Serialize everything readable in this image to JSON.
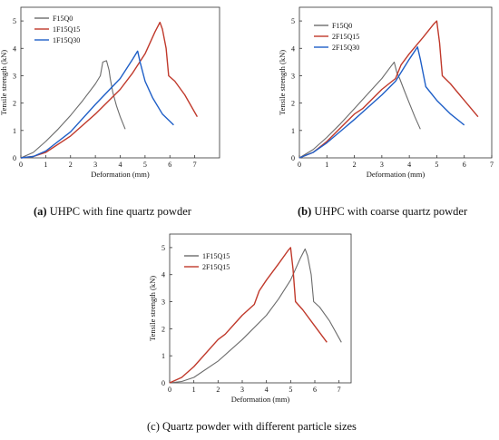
{
  "colors": {
    "gray": "#6b6b6b",
    "red": "#c0392b",
    "blue": "#1f5fc7",
    "axis": "#333333"
  },
  "panels": [
    {
      "caption_label": "(a)",
      "caption_text": "UHPC with fine quartz powder"
    },
    {
      "caption_label": "(b)",
      "caption_text": "UHPC with coarse quartz powder"
    },
    {
      "caption_label": "",
      "caption_text": "(c) Quartz powder with different particle sizes"
    }
  ],
  "chart_data": [
    {
      "type": "line",
      "title": "",
      "xlabel": "Deformation (mm)",
      "ylabel": "Tensile strength (kN)",
      "xlim": [
        0,
        8
      ],
      "ylim": [
        0,
        5.5
      ],
      "xticks": [
        "0",
        "1",
        "2",
        "3",
        "4",
        "5",
        "6",
        "7"
      ],
      "yticks": [
        "0",
        "1",
        "2",
        "3",
        "4",
        "5"
      ],
      "legend_position": "top-left",
      "series": [
        {
          "name": "F15Q0",
          "color": "gray",
          "x": [
            0,
            0.5,
            1.0,
            1.5,
            2.0,
            2.5,
            3.0,
            3.2,
            3.3,
            3.45,
            3.55,
            3.6,
            3.7,
            3.85,
            4.0,
            4.2
          ],
          "y": [
            0,
            0.2,
            0.6,
            1.05,
            1.55,
            2.1,
            2.7,
            3.0,
            3.5,
            3.55,
            3.2,
            2.9,
            2.4,
            1.9,
            1.5,
            1.05
          ]
        },
        {
          "name": "1F15Q15",
          "color": "red",
          "x": [
            0,
            0.5,
            1.0,
            2.0,
            3.0,
            4.0,
            4.5,
            5.0,
            5.4,
            5.6,
            5.7,
            5.85,
            5.95,
            6.2,
            6.6,
            7.1
          ],
          "y": [
            0,
            0.05,
            0.2,
            0.8,
            1.6,
            2.5,
            3.1,
            3.8,
            4.6,
            4.95,
            4.7,
            4.0,
            3.0,
            2.8,
            2.3,
            1.5
          ]
        },
        {
          "name": "1F15Q30",
          "color": "blue",
          "x": [
            0,
            0.5,
            1.0,
            2.0,
            3.0,
            4.0,
            4.5,
            4.7,
            4.8,
            5.0,
            5.3,
            5.7,
            6.15
          ],
          "y": [
            0,
            0.05,
            0.25,
            0.95,
            1.95,
            2.9,
            3.6,
            3.9,
            3.5,
            2.8,
            2.2,
            1.6,
            1.2
          ]
        }
      ]
    },
    {
      "type": "line",
      "title": "",
      "xlabel": "Deformation (mm)",
      "ylabel": "Tensile strength (kN)",
      "xlim": [
        0,
        7
      ],
      "ylim": [
        0,
        5.5
      ],
      "xticks": [
        "0",
        "1",
        "2",
        "3",
        "4",
        "5",
        "6",
        "7"
      ],
      "yticks": [
        "0",
        "1",
        "2",
        "3",
        "4",
        "5"
      ],
      "legend_position": "top-left",
      "series": [
        {
          "name": "F15Q0",
          "color": "gray",
          "x": [
            0,
            0.5,
            1.0,
            1.5,
            2.0,
            2.5,
            3.0,
            3.3,
            3.45,
            3.55,
            3.65,
            3.8,
            4.0,
            4.2,
            4.4
          ],
          "y": [
            0,
            0.3,
            0.75,
            1.25,
            1.8,
            2.35,
            2.9,
            3.3,
            3.5,
            3.1,
            2.9,
            2.5,
            2.0,
            1.5,
            1.05
          ]
        },
        {
          "name": "2F15Q15",
          "color": "red",
          "x": [
            0,
            0.5,
            1.0,
            2.0,
            2.3,
            3.0,
            3.5,
            3.7,
            4.0,
            4.5,
            4.9,
            5.0,
            5.1,
            5.2,
            5.5,
            6.0,
            6.5
          ],
          "y": [
            0,
            0.2,
            0.6,
            1.6,
            1.8,
            2.5,
            2.9,
            3.4,
            3.8,
            4.4,
            4.9,
            5.0,
            4.2,
            3.0,
            2.7,
            2.1,
            1.5
          ]
        },
        {
          "name": "2F15Q30",
          "color": "blue",
          "x": [
            0,
            0.5,
            1.0,
            2.0,
            3.0,
            3.5,
            4.0,
            4.3,
            4.4,
            4.6,
            5.0,
            5.5,
            6.0
          ],
          "y": [
            0,
            0.2,
            0.55,
            1.4,
            2.3,
            2.8,
            3.6,
            4.05,
            3.6,
            2.6,
            2.1,
            1.6,
            1.2
          ]
        }
      ]
    },
    {
      "type": "line",
      "title": "",
      "xlabel": "Deformation (mm)",
      "ylabel": "Tensile strength (kN)",
      "xlim": [
        0,
        7.5
      ],
      "ylim": [
        0,
        5.5
      ],
      "xticks": [
        "0",
        "1",
        "2",
        "3",
        "4",
        "5",
        "6",
        "7"
      ],
      "yticks": [
        "0",
        "1",
        "2",
        "3",
        "4",
        "5"
      ],
      "legend_position": "top-left",
      "series": [
        {
          "name": "1F15Q15",
          "color": "gray",
          "x": [
            0,
            0.5,
            1.0,
            2.0,
            3.0,
            4.0,
            4.5,
            5.0,
            5.4,
            5.6,
            5.7,
            5.85,
            5.95,
            6.2,
            6.6,
            7.1
          ],
          "y": [
            0,
            0.05,
            0.2,
            0.8,
            1.6,
            2.5,
            3.1,
            3.8,
            4.6,
            4.95,
            4.7,
            4.0,
            3.0,
            2.8,
            2.3,
            1.5
          ]
        },
        {
          "name": "2F15Q15",
          "color": "red",
          "x": [
            0,
            0.5,
            1.0,
            2.0,
            2.3,
            3.0,
            3.5,
            3.7,
            4.0,
            4.5,
            4.9,
            5.0,
            5.1,
            5.2,
            5.5,
            6.0,
            6.5
          ],
          "y": [
            0,
            0.2,
            0.6,
            1.6,
            1.8,
            2.5,
            2.9,
            3.4,
            3.8,
            4.4,
            4.9,
            5.0,
            4.2,
            3.0,
            2.7,
            2.1,
            1.5
          ]
        }
      ]
    }
  ]
}
